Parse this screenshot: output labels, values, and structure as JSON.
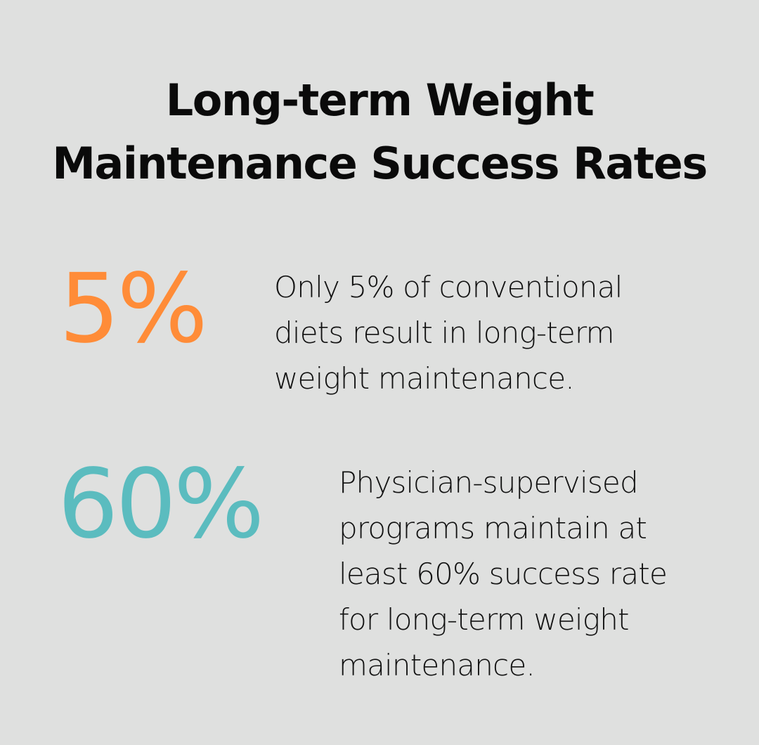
{
  "title": {
    "line1": "Long-term Weight",
    "line2": "Maintenance Success Rates"
  },
  "stats": [
    {
      "value": "5%",
      "color": "#ff8c38",
      "description_lines": [
        "Only 5% of conventional",
        "diets result in long-term",
        "weight maintenance."
      ]
    },
    {
      "value": "60%",
      "color": "#5bbcbf",
      "description_lines": [
        "Physician-supervised",
        "programs maintain at",
        "least 60% success rate",
        "for long-term weight",
        "maintenance."
      ]
    }
  ],
  "background_color": "#dfe0df"
}
